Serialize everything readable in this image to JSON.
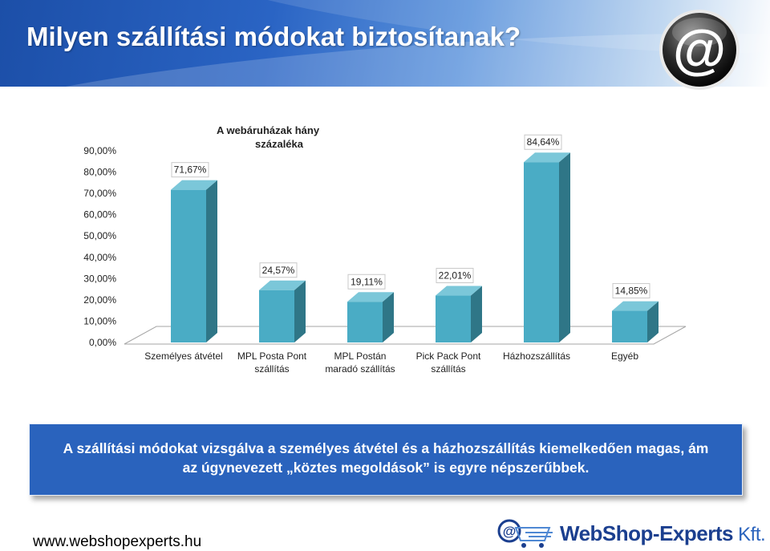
{
  "page": {
    "title": "Milyen szállítási módokat biztosítanak?",
    "website": "www.webshopexperts.hu",
    "brand": {
      "part1": "WebShop",
      "dash": "-",
      "part2": "Experts",
      "suffix": " Kft."
    },
    "summary": {
      "line1": "A szállítási módokat vizsgálva a személyes átvétel és a házhozszállítás kiemelkedően magas, ám",
      "line2": "az úgynevezett „köztes megoldások” is egyre népszerűbbek."
    }
  },
  "icons": {
    "header_logo": "at-sign-icon",
    "brand_logo": "shopping-cart-at-icon"
  },
  "colors": {
    "bar_front": "#4aacc5",
    "bar_side": "#2f7687",
    "bar_top": "#7bc7d9",
    "header_blue": "#2a64c4",
    "summary_bg": "#2a63bd"
  },
  "chart_data": {
    "type": "bar",
    "title": [
      "A webáruházak hány",
      "százaléka"
    ],
    "categories": [
      [
        "Személyes átvétel"
      ],
      [
        "MPL Posta Pont",
        "szállítás"
      ],
      [
        "MPL Postán",
        "maradó szállítás"
      ],
      [
        "Pick Pack Pont",
        "szállítás"
      ],
      [
        "Házhozszállítás"
      ],
      [
        "Egyéb"
      ]
    ],
    "values": [
      71.67,
      24.57,
      19.11,
      22.01,
      84.64,
      14.85
    ],
    "value_labels": [
      "71,67%",
      "24,57%",
      "19,11%",
      "22,01%",
      "84,64%",
      "14,85%"
    ],
    "y_ticks": [
      "0,00%",
      "10,00%",
      "20,00%",
      "30,00%",
      "40,00%",
      "50,00%",
      "60,00%",
      "70,00%",
      "80,00%",
      "90,00%"
    ],
    "ylim": [
      0,
      90
    ],
    "grid": false,
    "legend": "none",
    "style": "3d-column"
  }
}
